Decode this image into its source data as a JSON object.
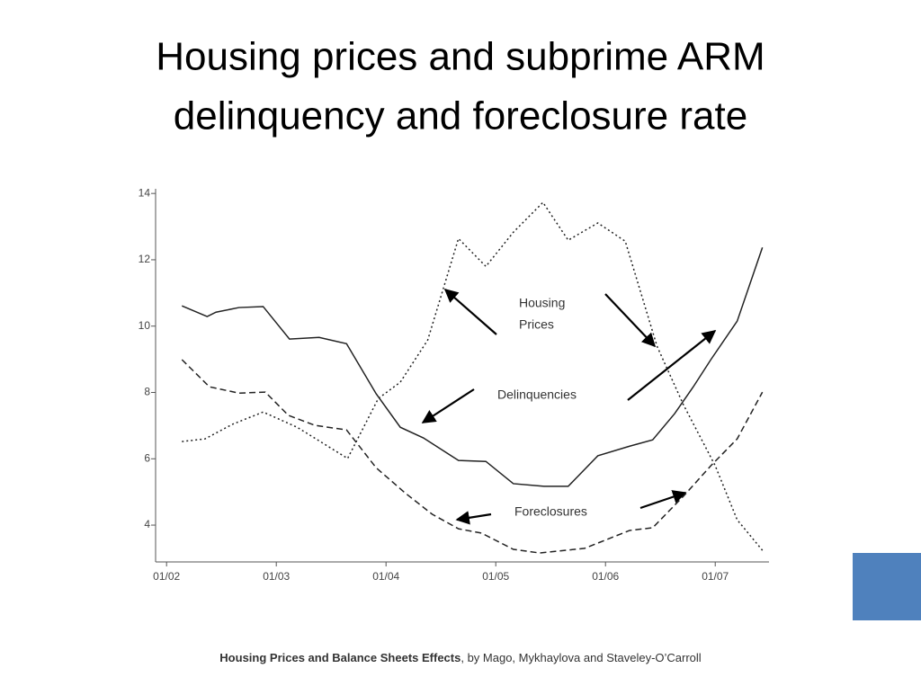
{
  "title": [
    "Housing prices and subprime ARM",
    "delinquency and foreclosure rate"
  ],
  "chart_data": {
    "type": "line",
    "xlim": [
      2001.9,
      2007.49
    ],
    "xticks": [
      {
        "value": 2002,
        "label": "01/02"
      },
      {
        "value": 2003,
        "label": "01/03"
      },
      {
        "value": 2004,
        "label": "01/04"
      },
      {
        "value": 2005,
        "label": "01/05"
      },
      {
        "value": 2006,
        "label": "01/06"
      },
      {
        "value": 2007,
        "label": "01/07"
      }
    ],
    "ylim": [
      2.89,
      14.14
    ],
    "yticks": [
      4,
      6,
      8,
      10,
      12,
      14
    ],
    "series": [
      {
        "color": "#222222",
        "dash": "dotted",
        "x": [
          2002.14,
          2002.35,
          2002.6,
          2002.88,
          2003.19,
          2003.65,
          2003.93,
          2004.13,
          2004.38,
          2004.66,
          2004.91,
          2005.16,
          2005.43,
          2005.66,
          2005.93,
          2006.18,
          2006.47,
          2006.71,
          2007.0,
          2007.2,
          2007.43
        ],
        "values": [
          6.52,
          6.6,
          7.04,
          7.41,
          6.95,
          6.01,
          7.82,
          8.31,
          9.58,
          12.64,
          11.8,
          12.83,
          13.73,
          12.59,
          13.11,
          12.56,
          9.39,
          7.63,
          5.79,
          4.16,
          3.24
        ]
      },
      {
        "color": "#222222",
        "dash": "solid",
        "x": [
          2002.14,
          2002.37,
          2002.45,
          2002.66,
          2002.88,
          2003.12,
          2003.39,
          2003.64,
          2003.91,
          2004.13,
          2004.34,
          2004.66,
          2004.91,
          2005.16,
          2005.44,
          2005.66,
          2005.93,
          2006.22,
          2006.43,
          2006.63,
          2006.8,
          2006.96,
          2007.2,
          2007.43
        ],
        "values": [
          10.61,
          10.29,
          10.42,
          10.56,
          10.59,
          9.61,
          9.66,
          9.47,
          7.96,
          6.95,
          6.63,
          5.95,
          5.92,
          5.25,
          5.17,
          5.17,
          6.09,
          6.38,
          6.57,
          7.36,
          8.17,
          8.99,
          10.15,
          12.37
        ]
      },
      {
        "color": "#222222",
        "dash": "dashed",
        "x": [
          2002.14,
          2002.39,
          2002.66,
          2002.9,
          2003.11,
          2003.35,
          2003.64,
          2003.91,
          2004.17,
          2004.42,
          2004.66,
          2004.87,
          2005.16,
          2005.4,
          2005.81,
          2006.22,
          2006.43,
          2006.71,
          2006.96,
          2007.2,
          2007.43
        ],
        "values": [
          8.99,
          8.17,
          7.98,
          8.01,
          7.31,
          7.01,
          6.87,
          5.73,
          4.98,
          4.33,
          3.89,
          3.76,
          3.27,
          3.16,
          3.3,
          3.84,
          3.92,
          4.87,
          5.79,
          6.6,
          8.01
        ]
      }
    ],
    "annotations": [
      [
        "Housing",
        "Prices"
      ],
      [
        "Delinquencies"
      ],
      [
        "Foreclosures"
      ]
    ]
  },
  "footer": {
    "source": "Housing Prices and Balance Sheets Effects",
    "authors": ", by Mago, Mykhaylova and Staveley-O’Carroll"
  }
}
